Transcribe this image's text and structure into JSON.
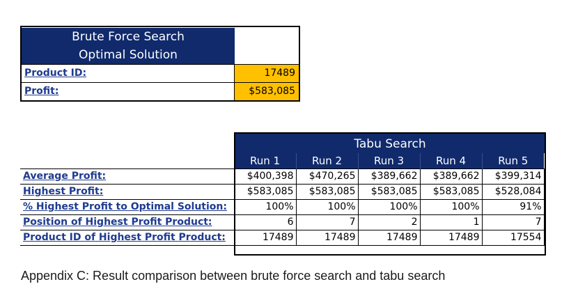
{
  "brute_force": {
    "title_line1": "Brute Force Search",
    "title_line2": "Optimal Solution",
    "rows": [
      {
        "label": "Product ID:",
        "value": "17489"
      },
      {
        "label": "Profit:",
        "value": "$583,085"
      }
    ]
  },
  "tabu": {
    "title": "Tabu Search",
    "runs": [
      "Run 1",
      "Run 2",
      "Run 3",
      "Run 4",
      "Run 5"
    ],
    "rows": [
      {
        "label": "Average Profit:",
        "values": [
          "$400,398",
          "$470,265",
          "$389,662",
          "$389,662",
          "$399,314"
        ]
      },
      {
        "label": "Highest Profit:",
        "values": [
          "$583,085",
          "$583,085",
          "$583,085",
          "$583,085",
          "$528,084"
        ]
      },
      {
        "label": "% Highest Profit to Optimal Solution:",
        "values": [
          "100%",
          "100%",
          "100%",
          "100%",
          "91%"
        ]
      },
      {
        "label": "Position of Highest Profit Product:",
        "values": [
          "6",
          "7",
          "2",
          "1",
          "7"
        ]
      },
      {
        "label": "Product ID of Highest Profit Product:",
        "values": [
          "17489",
          "17489",
          "17489",
          "17489",
          "17554"
        ]
      }
    ]
  },
  "caption": "Appendix C:  Result comparison between brute force search and tabu search",
  "colors": {
    "header_bg": "#102a6c",
    "highlight": "#ffc000",
    "label_text": "#1f3b8f"
  }
}
